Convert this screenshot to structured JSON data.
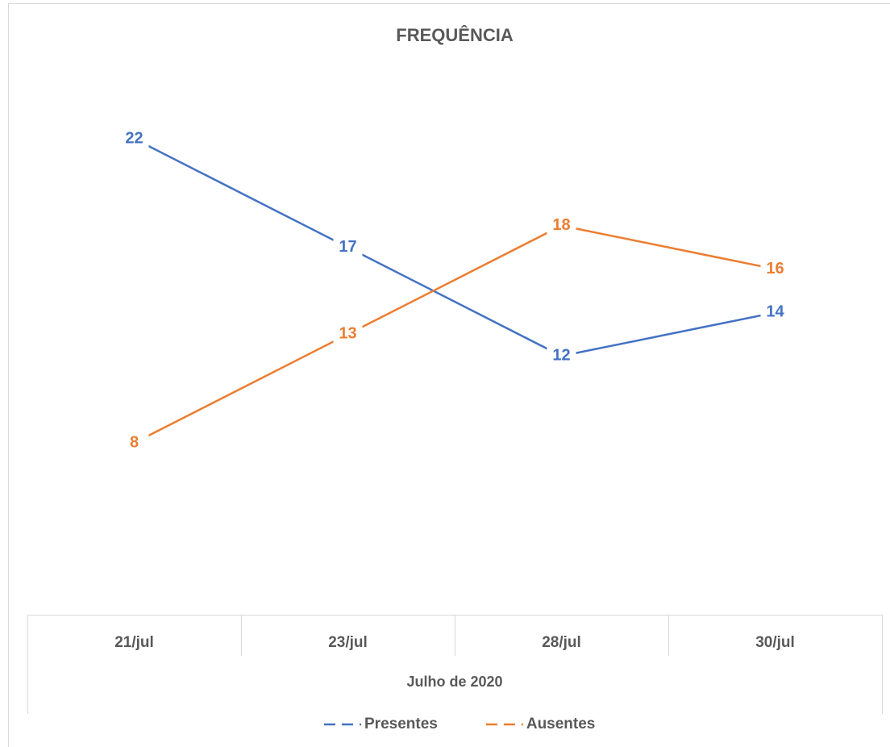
{
  "chart_data": {
    "type": "line",
    "title": "FREQUÊNCIA",
    "categories": [
      "21/jul",
      "23/jul",
      "28/jul",
      "30/jul"
    ],
    "xlabel": "Julho de 2020",
    "series": [
      {
        "name": "Presentes",
        "color": "#4472c4",
        "values": [
          22,
          17,
          12,
          14
        ]
      },
      {
        "name": "Ausentes",
        "color": "#ed7d31",
        "values": [
          8,
          13,
          18,
          16
        ]
      }
    ],
    "legend": "bottom"
  }
}
